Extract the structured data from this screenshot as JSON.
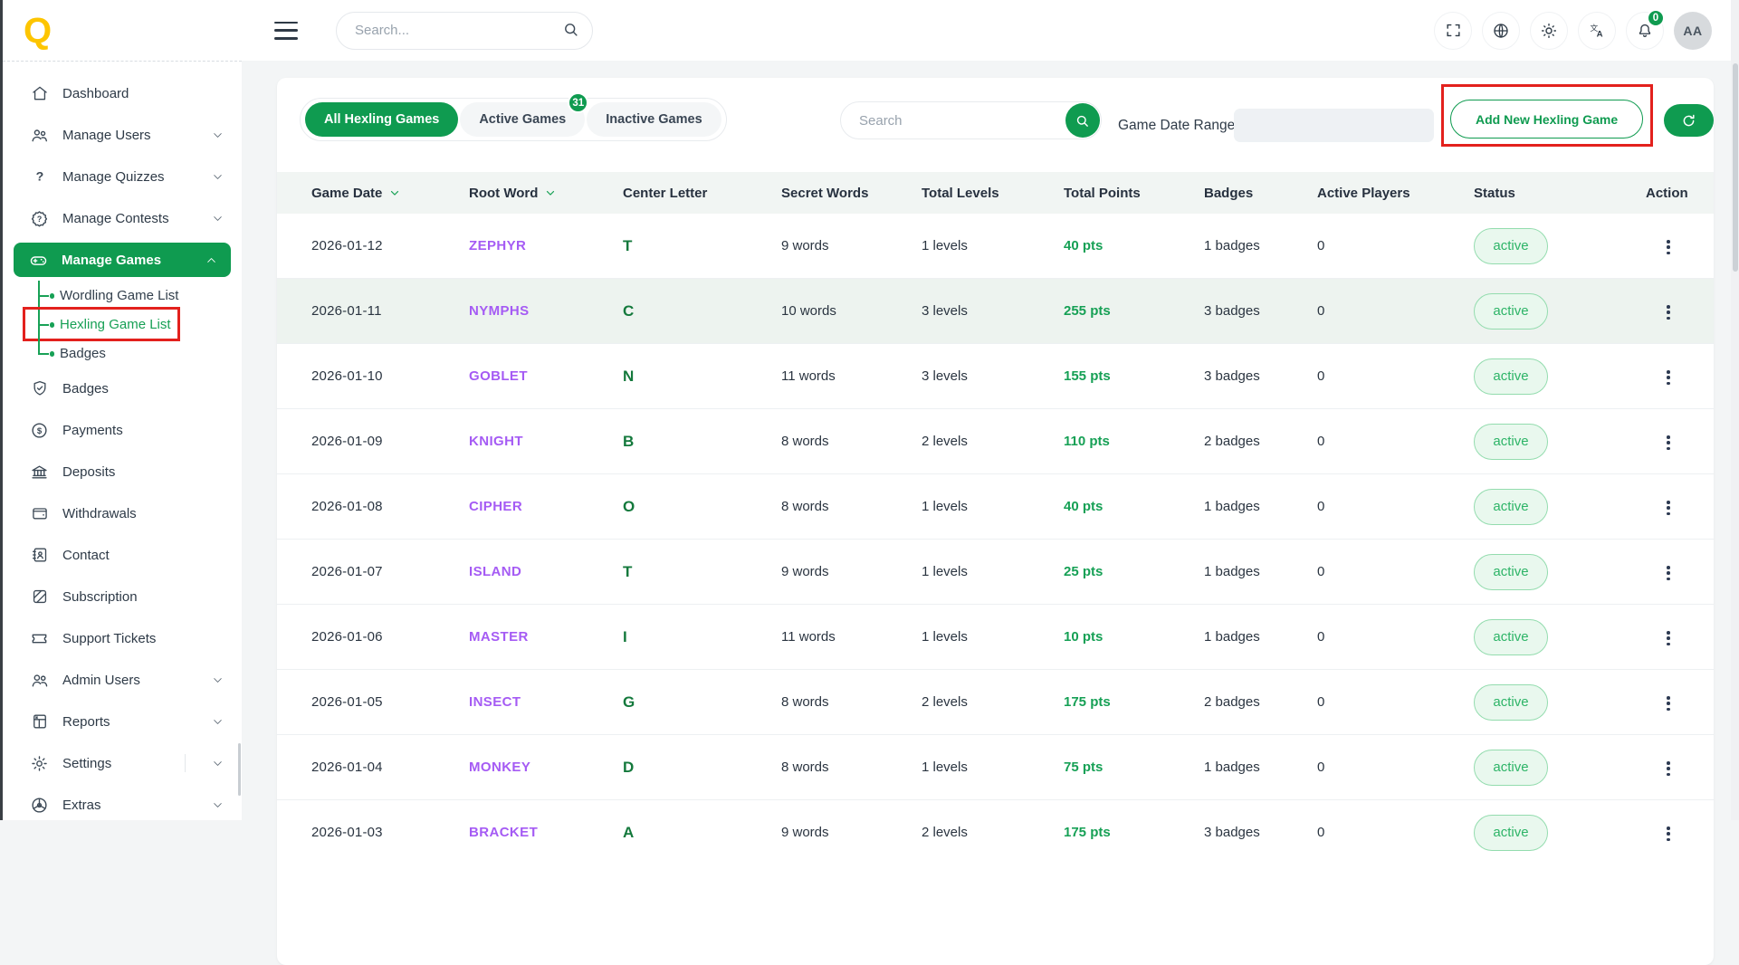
{
  "brand": {
    "logo": "Q"
  },
  "header": {
    "search_placeholder": "Search...",
    "notification_count": "0",
    "avatar_initials": "AA"
  },
  "sidebar": {
    "items": [
      {
        "label": "Dashboard",
        "icon": "home"
      },
      {
        "label": "Manage Users",
        "icon": "users",
        "expandable": true
      },
      {
        "label": "Manage Quizzes",
        "icon": "question",
        "expandable": true
      },
      {
        "label": "Manage Contests",
        "icon": "contest",
        "expandable": true
      },
      {
        "label": "Manage Games",
        "icon": "gamepad",
        "expandable": true,
        "expanded": true,
        "active": true
      },
      {
        "label": "Wordling Game List",
        "sub": true
      },
      {
        "label": "Hexling Game List",
        "sub": true,
        "selected": true,
        "annotated": true
      },
      {
        "label": "Badges",
        "sub": true,
        "last": true
      },
      {
        "label": "Badges",
        "icon": "shield-check"
      },
      {
        "label": "Payments",
        "icon": "dollar-circle"
      },
      {
        "label": "Deposits",
        "icon": "bank"
      },
      {
        "label": "Withdrawals",
        "icon": "wallet"
      },
      {
        "label": "Contact",
        "icon": "contact-book"
      },
      {
        "label": "Subscription",
        "icon": "subscription"
      },
      {
        "label": "Support Tickets",
        "icon": "ticket"
      },
      {
        "label": "Admin Users",
        "icon": "admin-users",
        "expandable": true
      },
      {
        "label": "Reports",
        "icon": "report",
        "expandable": true
      },
      {
        "label": "Settings",
        "icon": "gear",
        "expandable": true,
        "divider": true
      },
      {
        "label": "Extras",
        "icon": "aperture",
        "expandable": true
      }
    ]
  },
  "toolbar": {
    "tabs": [
      {
        "label": "All Hexling Games",
        "active": true
      },
      {
        "label": "Active Games",
        "badge": "31"
      },
      {
        "label": "Inactive Games"
      }
    ],
    "search_placeholder": "Search",
    "date_range_label": "Game Date Range:",
    "add_button_label": "Add New Hexling Game"
  },
  "table": {
    "columns": [
      {
        "label": "Game Date",
        "sortable": true
      },
      {
        "label": "Root Word",
        "sortable": true
      },
      {
        "label": "Center Letter"
      },
      {
        "label": "Secret Words"
      },
      {
        "label": "Total Levels"
      },
      {
        "label": "Total Points"
      },
      {
        "label": "Badges"
      },
      {
        "label": "Active Players"
      },
      {
        "label": "Status"
      },
      {
        "label": "Action",
        "right": true
      }
    ],
    "rows": [
      {
        "date": "2026-01-12",
        "root_word": "ZEPHYR",
        "center_letter": "T",
        "secret_words": "9 words",
        "total_levels": "1 levels",
        "total_points": "40 pts",
        "badges": "1 badges",
        "active_players": "0",
        "status": "active"
      },
      {
        "date": "2026-01-11",
        "root_word": "NYMPHS",
        "center_letter": "C",
        "secret_words": "10 words",
        "total_levels": "3 levels",
        "total_points": "255 pts",
        "badges": "3 badges",
        "active_players": "0",
        "status": "active",
        "highlight": true
      },
      {
        "date": "2026-01-10",
        "root_word": "GOBLET",
        "center_letter": "N",
        "secret_words": "11 words",
        "total_levels": "3 levels",
        "total_points": "155 pts",
        "badges": "3 badges",
        "active_players": "0",
        "status": "active"
      },
      {
        "date": "2026-01-09",
        "root_word": "KNIGHT",
        "center_letter": "B",
        "secret_words": "8 words",
        "total_levels": "2 levels",
        "total_points": "110 pts",
        "badges": "2 badges",
        "active_players": "0",
        "status": "active"
      },
      {
        "date": "2026-01-08",
        "root_word": "CIPHER",
        "center_letter": "O",
        "secret_words": "8 words",
        "total_levels": "1 levels",
        "total_points": "40 pts",
        "badges": "1 badges",
        "active_players": "0",
        "status": "active"
      },
      {
        "date": "2026-01-07",
        "root_word": "ISLAND",
        "center_letter": "T",
        "secret_words": "9 words",
        "total_levels": "1 levels",
        "total_points": "25 pts",
        "badges": "1 badges",
        "active_players": "0",
        "status": "active"
      },
      {
        "date": "2026-01-06",
        "root_word": "MASTER",
        "center_letter": "I",
        "secret_words": "11 words",
        "total_levels": "1 levels",
        "total_points": "10 pts",
        "badges": "1 badges",
        "active_players": "0",
        "status": "active"
      },
      {
        "date": "2026-01-05",
        "root_word": "INSECT",
        "center_letter": "G",
        "secret_words": "8 words",
        "total_levels": "2 levels",
        "total_points": "175 pts",
        "badges": "2 badges",
        "active_players": "0",
        "status": "active"
      },
      {
        "date": "2026-01-04",
        "root_word": "MONKEY",
        "center_letter": "D",
        "secret_words": "8 words",
        "total_levels": "1 levels",
        "total_points": "75 pts",
        "badges": "1 badges",
        "active_players": "0",
        "status": "active"
      },
      {
        "date": "2026-01-03",
        "root_word": "BRACKET",
        "center_letter": "A",
        "secret_words": "9 words",
        "total_levels": "2 levels",
        "total_points": "175 pts",
        "badges": "3 badges",
        "active_players": "0",
        "status": "active"
      }
    ]
  },
  "colors": {
    "primary_green": "#0f9b50",
    "root_word_purple": "#a55bf4",
    "center_letter_green": "#14793c",
    "points_green": "#16a055",
    "status_bg": "#e9f8ee",
    "status_border": "#93dcae",
    "status_text": "#2db467",
    "annotation_red": "#e3211d",
    "logo_yellow": "#fdc500",
    "page_bg": "#f3f5f6"
  }
}
